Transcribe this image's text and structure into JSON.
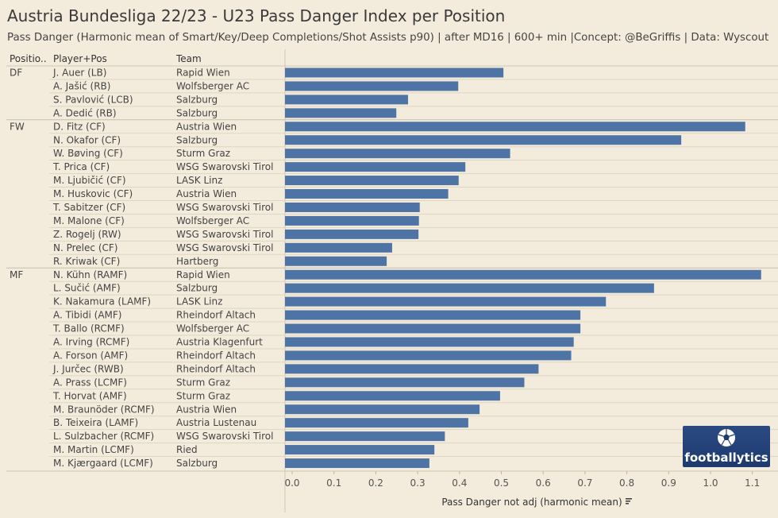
{
  "header": {
    "title": "Austria Bundesliga  22/23 - U23 Pass Danger Index per Position",
    "subtitle": "Pass Danger  (Harmonic mean of Smart/Key/Deep Completions/Shot Assists p90) | after MD16 | 600+ min |Concept: @BeGriffis | Data: Wyscout"
  },
  "columns": {
    "position": "Positio..",
    "player": "Player+Pos",
    "team": "Team"
  },
  "logo": {
    "text": "footballytics"
  },
  "colors": {
    "bar": "#4e74a6",
    "background": "#f3ecdc",
    "grid": "#ded6c4"
  },
  "chart_data": {
    "type": "bar",
    "orientation": "horizontal",
    "title": "Austria Bundesliga  22/23 - U23 Pass Danger Index per Position",
    "xlabel": "Pass Danger not adj (harmonic mean)",
    "sort_icon": "sort-descending-icon",
    "xlim": [
      0,
      1.14
    ],
    "xticks": [
      0.0,
      0.1,
      0.2,
      0.3,
      0.4,
      0.5,
      0.6,
      0.7,
      0.8,
      0.9,
      1.0,
      1.1
    ],
    "groups": [
      {
        "position": "DF",
        "rows": [
          {
            "player": "J. Auer (LB)",
            "team": "Rapid Wien",
            "value": 0.505
          },
          {
            "player": "A. Jašić (RB)",
            "team": "Wolfsberger AC",
            "value": 0.397
          },
          {
            "player": "S. Pavlović (LCB)",
            "team": "Salzburg",
            "value": 0.277
          },
          {
            "player": "A. Dedić (RB)",
            "team": "Salzburg",
            "value": 0.249
          }
        ]
      },
      {
        "position": "FW",
        "rows": [
          {
            "player": "D. Fitz (CF)",
            "team": "Austria Wien",
            "value": 1.083
          },
          {
            "player": "N. Okafor (CF)",
            "team": "Salzburg",
            "value": 0.93
          },
          {
            "player": "W. Bøving (CF)",
            "team": "Sturm Graz",
            "value": 0.521
          },
          {
            "player": "T. Prica (CF)",
            "team": "WSG Swarovski Tirol",
            "value": 0.414
          },
          {
            "player": "M. Ljubičić (CF)",
            "team": "LASK Linz",
            "value": 0.398
          },
          {
            "player": "M. Huskovic (CF)",
            "team": "Austria Wien",
            "value": 0.373
          },
          {
            "player": "T. Sabitzer (CF)",
            "team": "WSG Swarovski Tirol",
            "value": 0.305
          },
          {
            "player": "M. Malone (CF)",
            "team": "Wolfsberger AC",
            "value": 0.303
          },
          {
            "player": "Z. Rogelj (RW)",
            "team": "WSG Swarovski Tirol",
            "value": 0.302
          },
          {
            "player": "N. Prelec (CF)",
            "team": "WSG Swarovski Tirol",
            "value": 0.239
          },
          {
            "player": "R. Kriwak (CF)",
            "team": "Hartberg",
            "value": 0.226
          }
        ]
      },
      {
        "position": "MF",
        "rows": [
          {
            "player": "N. Kühn (RAMF)",
            "team": "Rapid Wien",
            "value": 1.121
          },
          {
            "player": "L. Sučić (AMF)",
            "team": "Salzburg",
            "value": 0.865
          },
          {
            "player": "K. Nakamura (LAMF)",
            "team": "LASK Linz",
            "value": 0.75
          },
          {
            "player": "A. Tibidi (AMF)",
            "team": "Rheindorf Altach",
            "value": 0.689
          },
          {
            "player": "T. Ballo (RCMF)",
            "team": "Wolfsberger AC",
            "value": 0.689
          },
          {
            "player": "A. Irving (RCMF)",
            "team": "Austria Klagenfurt",
            "value": 0.673
          },
          {
            "player": "A. Forson (AMF)",
            "team": "Rheindorf Altach",
            "value": 0.667
          },
          {
            "player": "J. Jurčec (RWB)",
            "team": "Rheindorf Altach",
            "value": 0.589
          },
          {
            "player": "A. Prass (LCMF)",
            "team": "Sturm Graz",
            "value": 0.555
          },
          {
            "player": "T. Horvat (AMF)",
            "team": "Sturm Graz",
            "value": 0.497
          },
          {
            "player": "M. Braunöder (RCMF)",
            "team": "Austria Wien",
            "value": 0.448
          },
          {
            "player": "B. Teixeira (LAMF)",
            "team": "Austria Lustenau",
            "value": 0.421
          },
          {
            "player": "L. Sulzbacher (RCMF)",
            "team": "WSG Swarovski Tirol",
            "value": 0.365
          },
          {
            "player": "M. Martin (LCMF)",
            "team": "Ried",
            "value": 0.34
          },
          {
            "player": "M. Kjærgaard (LCMF)",
            "team": "Salzburg",
            "value": 0.328
          }
        ]
      }
    ]
  }
}
